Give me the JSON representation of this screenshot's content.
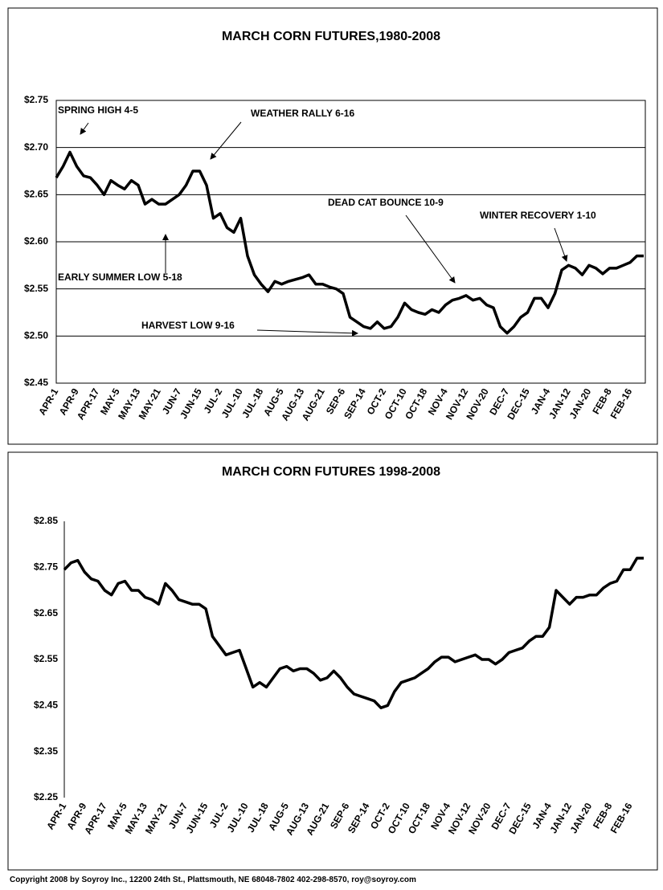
{
  "chart_data": [
    {
      "type": "line",
      "title": "MARCH CORN FUTURES,1980-2008",
      "categories": [
        "APR-1",
        null,
        null,
        "APR-9",
        null,
        null,
        "APR-17",
        null,
        null,
        "MAY-5",
        null,
        null,
        "MAY-13",
        null,
        null,
        "MAY-21",
        null,
        null,
        "JUN-7",
        null,
        null,
        "JUN-15",
        null,
        null,
        "JUL-2",
        null,
        null,
        "JUL-10",
        null,
        null,
        "JUL-18",
        null,
        null,
        "AUG-5",
        null,
        null,
        "AUG-13",
        null,
        null,
        "AUG-21",
        null,
        null,
        "SEP-6",
        null,
        null,
        "SEP-14",
        null,
        null,
        "OCT-2",
        null,
        null,
        "OCT-10",
        null,
        null,
        "OCT-18",
        null,
        null,
        "NOV-4",
        null,
        null,
        "NOV-12",
        null,
        null,
        "NOV-20",
        null,
        null,
        "DEC-7",
        null,
        null,
        "DEC-15",
        null,
        null,
        "JAN-4",
        null,
        null,
        "JAN-12",
        null,
        null,
        "JAN-20",
        null,
        null,
        "FEB-8",
        null,
        null,
        "FEB-16",
        null,
        null
      ],
      "values": [
        2.668,
        2.68,
        2.695,
        2.68,
        2.67,
        2.668,
        2.66,
        2.65,
        2.665,
        2.66,
        2.656,
        2.665,
        2.66,
        2.64,
        2.645,
        2.64,
        2.64,
        2.645,
        2.65,
        2.66,
        2.675,
        2.675,
        2.66,
        2.625,
        2.63,
        2.615,
        2.61,
        2.625,
        2.585,
        2.565,
        2.555,
        2.547,
        2.558,
        2.555,
        2.558,
        2.56,
        2.562,
        2.565,
        2.555,
        2.555,
        2.552,
        2.55,
        2.545,
        2.52,
        2.515,
        2.51,
        2.508,
        2.515,
        2.508,
        2.51,
        2.52,
        2.535,
        2.528,
        2.525,
        2.523,
        2.528,
        2.525,
        2.533,
        2.538,
        2.54,
        2.543,
        2.538,
        2.54,
        2.533,
        2.53,
        2.51,
        2.503,
        2.51,
        2.52,
        2.525,
        2.54,
        2.54,
        2.53,
        2.545,
        2.57,
        2.575,
        2.572,
        2.565,
        2.575,
        2.572,
        2.566,
        2.572,
        2.572,
        2.575,
        2.578,
        2.585,
        2.585
      ],
      "color": "#000000",
      "ylim": [
        2.45,
        2.75
      ],
      "yticks": [
        {
          "value": 2.45,
          "label": "$2.45"
        },
        {
          "value": 2.5,
          "label": "$2.50"
        },
        {
          "value": 2.55,
          "label": "$2.55"
        },
        {
          "value": 2.6,
          "label": "$2.60"
        },
        {
          "value": 2.65,
          "label": "$2.65"
        },
        {
          "value": 2.7,
          "label": "$2.70"
        },
        {
          "value": 2.75,
          "label": "$2.75"
        }
      ],
      "grid": true,
      "annotations": [
        "SPRING HIGH 4-5",
        "WEATHER RALLY 6-16",
        "DEAD CAT BOUNCE 10-9",
        "WINTER RECOVERY 1-10",
        "EARLY SUMMER LOW 5-18",
        "HARVEST LOW  9-16"
      ]
    },
    {
      "type": "line",
      "title": "MARCH CORN FUTURES  1998-2008",
      "categories": [
        "APR-1",
        null,
        null,
        "APR-9",
        null,
        null,
        "APR-17",
        null,
        null,
        "MAY-5",
        null,
        null,
        "MAY-13",
        null,
        null,
        "MAY-21",
        null,
        null,
        "JUN-7",
        null,
        null,
        "JUN-15",
        null,
        null,
        "JUL-2",
        null,
        null,
        "JUL-10",
        null,
        null,
        "JUL-18",
        null,
        null,
        "AUG-5",
        null,
        null,
        "AUG-13",
        null,
        null,
        "AUG-21",
        null,
        null,
        "SEP-6",
        null,
        null,
        "SEP-14",
        null,
        null,
        "OCT-2",
        null,
        null,
        "OCT-10",
        null,
        null,
        "OCT-18",
        null,
        null,
        "NOV-4",
        null,
        null,
        "NOV-12",
        null,
        null,
        "NOV-20",
        null,
        null,
        "DEC-7",
        null,
        null,
        "DEC-15",
        null,
        null,
        "JAN-4",
        null,
        null,
        "JAN-12",
        null,
        null,
        "JAN-20",
        null,
        null,
        "FEB-8",
        null,
        null,
        "FEB-16",
        null,
        null
      ],
      "values": [
        2.745,
        2.76,
        2.765,
        2.74,
        2.725,
        2.72,
        2.7,
        2.69,
        2.715,
        2.72,
        2.7,
        2.7,
        2.685,
        2.68,
        2.67,
        2.715,
        2.7,
        2.68,
        2.675,
        2.67,
        2.67,
        2.66,
        2.6,
        2.58,
        2.56,
        2.565,
        2.57,
        2.53,
        2.49,
        2.5,
        2.49,
        2.51,
        2.53,
        2.535,
        2.525,
        2.53,
        2.53,
        2.52,
        2.505,
        2.51,
        2.525,
        2.51,
        2.49,
        2.475,
        2.47,
        2.465,
        2.46,
        2.445,
        2.45,
        2.48,
        2.5,
        2.505,
        2.51,
        2.52,
        2.53,
        2.545,
        2.555,
        2.555,
        2.545,
        2.55,
        2.555,
        2.56,
        2.55,
        2.55,
        2.54,
        2.55,
        2.565,
        2.57,
        2.575,
        2.59,
        2.6,
        2.6,
        2.62,
        2.7,
        2.685,
        2.67,
        2.685,
        2.685,
        2.69,
        2.69,
        2.705,
        2.715,
        2.72,
        2.745,
        2.745,
        2.77,
        2.77
      ],
      "color": "#000000",
      "ylim": [
        2.25,
        2.85
      ],
      "yticks": [
        {
          "value": 2.25,
          "label": "$2.25"
        },
        {
          "value": 2.35,
          "label": "$2.35"
        },
        {
          "value": 2.45,
          "label": "$2.45"
        },
        {
          "value": 2.55,
          "label": "$2.55"
        },
        {
          "value": 2.65,
          "label": "$2.65"
        },
        {
          "value": 2.75,
          "label": "$2.75"
        },
        {
          "value": 2.85,
          "label": "$2.85"
        }
      ],
      "grid": false
    }
  ],
  "footer": "Copyright 2008 by Soyroy Inc., 12200 24th St., Plattsmouth, NE 68048-7802 402-298-8570, roy@soyroy.com"
}
